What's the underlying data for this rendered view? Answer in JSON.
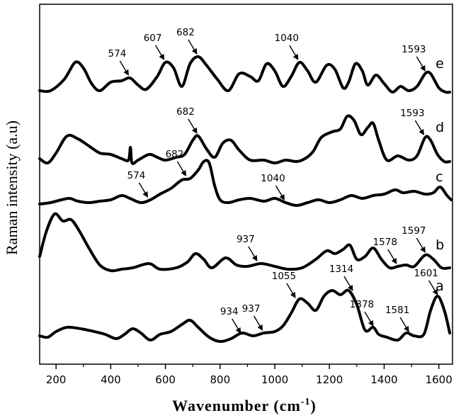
{
  "chart_data": {
    "type": "line",
    "title": "",
    "xlabel": "Wavenumber (cm",
    "xlabel_superscript": "-1",
    "xlabel_close": ")",
    "ylabel": "Raman intensity (a.u)",
    "xlim": [
      140,
      1650
    ],
    "xticks": [
      200,
      400,
      600,
      800,
      1000,
      1200,
      1400,
      1600
    ],
    "grid": false,
    "series": [
      {
        "name": "a",
        "offset": 0.0,
        "points": [
          [
            140,
            0.04
          ],
          [
            170,
            0.03
          ],
          [
            200,
            0.07
          ],
          [
            240,
            0.1
          ],
          [
            290,
            0.09
          ],
          [
            340,
            0.07
          ],
          [
            380,
            0.05
          ],
          [
            420,
            0.02
          ],
          [
            450,
            0.05
          ],
          [
            480,
            0.09
          ],
          [
            510,
            0.06
          ],
          [
            545,
            0.01
          ],
          [
            580,
            0.05
          ],
          [
            620,
            0.07
          ],
          [
            660,
            0.12
          ],
          [
            690,
            0.15
          ],
          [
            720,
            0.1
          ],
          [
            760,
            0.03
          ],
          [
            800,
            0.0
          ],
          [
            840,
            0.02
          ],
          [
            880,
            0.06
          ],
          [
            920,
            0.04
          ],
          [
            960,
            0.06
          ],
          [
            1000,
            0.07
          ],
          [
            1030,
            0.11
          ],
          [
            1060,
            0.2
          ],
          [
            1090,
            0.3
          ],
          [
            1120,
            0.27
          ],
          [
            1150,
            0.22
          ],
          [
            1180,
            0.32
          ],
          [
            1210,
            0.36
          ],
          [
            1240,
            0.33
          ],
          [
            1270,
            0.36
          ],
          [
            1300,
            0.26
          ],
          [
            1330,
            0.08
          ],
          [
            1360,
            0.1
          ],
          [
            1380,
            0.05
          ],
          [
            1410,
            0.03
          ],
          [
            1450,
            0.01
          ],
          [
            1480,
            0.06
          ],
          [
            1510,
            0.04
          ],
          [
            1545,
            0.05
          ],
          [
            1570,
            0.22
          ],
          [
            1595,
            0.32
          ],
          [
            1620,
            0.22
          ],
          [
            1640,
            0.06
          ]
        ]
      },
      {
        "name": "b",
        "offset": 0.5,
        "points": [
          [
            140,
            0.1
          ],
          [
            165,
            0.28
          ],
          [
            195,
            0.4
          ],
          [
            225,
            0.35
          ],
          [
            255,
            0.36
          ],
          [
            285,
            0.28
          ],
          [
            320,
            0.16
          ],
          [
            360,
            0.04
          ],
          [
            400,
            0.0
          ],
          [
            440,
            0.01
          ],
          [
            480,
            0.02
          ],
          [
            540,
            0.05
          ],
          [
            580,
            0.01
          ],
          [
            640,
            0.02
          ],
          [
            680,
            0.06
          ],
          [
            710,
            0.12
          ],
          [
            740,
            0.08
          ],
          [
            770,
            0.02
          ],
          [
            820,
            0.09
          ],
          [
            860,
            0.04
          ],
          [
            900,
            0.03
          ],
          [
            950,
            0.05
          ],
          [
            1000,
            0.03
          ],
          [
            1050,
            0.01
          ],
          [
            1100,
            0.02
          ],
          [
            1150,
            0.08
          ],
          [
            1190,
            0.14
          ],
          [
            1220,
            0.12
          ],
          [
            1250,
            0.15
          ],
          [
            1275,
            0.18
          ],
          [
            1300,
            0.08
          ],
          [
            1330,
            0.1
          ],
          [
            1360,
            0.16
          ],
          [
            1390,
            0.08
          ],
          [
            1420,
            0.02
          ],
          [
            1450,
            0.03
          ],
          [
            1480,
            0.04
          ],
          [
            1510,
            0.03
          ],
          [
            1550,
            0.11
          ],
          [
            1580,
            0.08
          ],
          [
            1610,
            0.02
          ],
          [
            1640,
            0.02
          ]
        ]
      },
      {
        "name": "c",
        "offset": 0.96,
        "points": [
          [
            140,
            0.01
          ],
          [
            180,
            0.02
          ],
          [
            220,
            0.04
          ],
          [
            250,
            0.05
          ],
          [
            280,
            0.03
          ],
          [
            320,
            0.02
          ],
          [
            360,
            0.03
          ],
          [
            400,
            0.04
          ],
          [
            440,
            0.07
          ],
          [
            470,
            0.05
          ],
          [
            510,
            0.02
          ],
          [
            545,
            0.04
          ],
          [
            580,
            0.08
          ],
          [
            620,
            0.12
          ],
          [
            660,
            0.18
          ],
          [
            690,
            0.19
          ],
          [
            720,
            0.25
          ],
          [
            740,
            0.31
          ],
          [
            760,
            0.3
          ],
          [
            780,
            0.14
          ],
          [
            800,
            0.04
          ],
          [
            830,
            0.02
          ],
          [
            870,
            0.04
          ],
          [
            910,
            0.05
          ],
          [
            960,
            0.03
          ],
          [
            1000,
            0.05
          ],
          [
            1040,
            0.02
          ],
          [
            1080,
            0.0
          ],
          [
            1120,
            0.02
          ],
          [
            1160,
            0.04
          ],
          [
            1200,
            0.02
          ],
          [
            1240,
            0.04
          ],
          [
            1280,
            0.07
          ],
          [
            1320,
            0.05
          ],
          [
            1360,
            0.07
          ],
          [
            1400,
            0.08
          ],
          [
            1440,
            0.11
          ],
          [
            1470,
            0.09
          ],
          [
            1510,
            0.1
          ],
          [
            1550,
            0.08
          ],
          [
            1580,
            0.09
          ],
          [
            1605,
            0.13
          ],
          [
            1630,
            0.07
          ],
          [
            1645,
            0.04
          ]
        ]
      },
      {
        "name": "d",
        "offset": 1.26,
        "points": [
          [
            140,
            0.03
          ],
          [
            170,
            0.0
          ],
          [
            200,
            0.07
          ],
          [
            240,
            0.19
          ],
          [
            280,
            0.17
          ],
          [
            320,
            0.12
          ],
          [
            360,
            0.07
          ],
          [
            400,
            0.06
          ],
          [
            440,
            0.03
          ],
          [
            465,
            0.02
          ],
          [
            472,
            0.11
          ],
          [
            478,
            0.0
          ],
          [
            500,
            0.02
          ],
          [
            540,
            0.06
          ],
          [
            570,
            0.04
          ],
          [
            600,
            0.02
          ],
          [
            640,
            0.04
          ],
          [
            670,
            0.06
          ],
          [
            700,
            0.16
          ],
          [
            720,
            0.19
          ],
          [
            750,
            0.1
          ],
          [
            780,
            0.04
          ],
          [
            810,
            0.14
          ],
          [
            840,
            0.16
          ],
          [
            870,
            0.09
          ],
          [
            910,
            0.02
          ],
          [
            960,
            0.02
          ],
          [
            1000,
            0.0
          ],
          [
            1040,
            0.02
          ],
          [
            1080,
            0.01
          ],
          [
            1110,
            0.03
          ],
          [
            1140,
            0.08
          ],
          [
            1170,
            0.18
          ],
          [
            1210,
            0.22
          ],
          [
            1240,
            0.24
          ],
          [
            1265,
            0.33
          ],
          [
            1290,
            0.3
          ],
          [
            1315,
            0.2
          ],
          [
            1340,
            0.25
          ],
          [
            1360,
            0.28
          ],
          [
            1380,
            0.16
          ],
          [
            1410,
            0.02
          ],
          [
            1450,
            0.05
          ],
          [
            1490,
            0.02
          ],
          [
            1520,
            0.05
          ],
          [
            1550,
            0.18
          ],
          [
            1570,
            0.16
          ],
          [
            1595,
            0.06
          ],
          [
            1620,
            0.01
          ],
          [
            1640,
            0.01
          ]
        ]
      },
      {
        "name": "e",
        "offset": 1.75,
        "points": [
          [
            140,
            0.02
          ],
          [
            180,
            0.02
          ],
          [
            230,
            0.1
          ],
          [
            270,
            0.22
          ],
          [
            300,
            0.18
          ],
          [
            330,
            0.07
          ],
          [
            360,
            0.02
          ],
          [
            400,
            0.08
          ],
          [
            440,
            0.09
          ],
          [
            470,
            0.11
          ],
          [
            500,
            0.06
          ],
          [
            530,
            0.03
          ],
          [
            570,
            0.12
          ],
          [
            600,
            0.22
          ],
          [
            630,
            0.18
          ],
          [
            660,
            0.05
          ],
          [
            690,
            0.21
          ],
          [
            720,
            0.26
          ],
          [
            750,
            0.2
          ],
          [
            790,
            0.1
          ],
          [
            830,
            0.02
          ],
          [
            870,
            0.14
          ],
          [
            910,
            0.12
          ],
          [
            940,
            0.09
          ],
          [
            970,
            0.21
          ],
          [
            1000,
            0.16
          ],
          [
            1030,
            0.05
          ],
          [
            1060,
            0.12
          ],
          [
            1090,
            0.22
          ],
          [
            1120,
            0.16
          ],
          [
            1150,
            0.08
          ],
          [
            1190,
            0.2
          ],
          [
            1220,
            0.17
          ],
          [
            1250,
            0.04
          ],
          [
            1270,
            0.08
          ],
          [
            1295,
            0.21
          ],
          [
            1320,
            0.16
          ],
          [
            1340,
            0.06
          ],
          [
            1370,
            0.13
          ],
          [
            1400,
            0.07
          ],
          [
            1430,
            0.01
          ],
          [
            1460,
            0.05
          ],
          [
            1490,
            0.02
          ],
          [
            1520,
            0.05
          ],
          [
            1550,
            0.14
          ],
          [
            1570,
            0.14
          ],
          [
            1600,
            0.04
          ],
          [
            1625,
            0.01
          ],
          [
            1640,
            0.01
          ]
        ]
      }
    ],
    "annotations": [
      {
        "series": "a",
        "text": "934",
        "x": 880,
        "y": 0.04
      },
      {
        "series": "a",
        "text": "937",
        "x": 960,
        "y": 0.06
      },
      {
        "series": "a",
        "text": "1055",
        "x": 1080,
        "y": 0.29
      },
      {
        "series": "a",
        "text": "1314",
        "x": 1290,
        "y": 0.34
      },
      {
        "series": "a",
        "text": "1378",
        "x": 1365,
        "y": 0.09
      },
      {
        "series": "a",
        "text": "1581",
        "x": 1495,
        "y": 0.05
      },
      {
        "series": "a",
        "text": "1601",
        "x": 1600,
        "y": 0.31
      },
      {
        "series": "b",
        "text": "937",
        "x": 940,
        "y": 0.05
      },
      {
        "series": "b",
        "text": "1578",
        "x": 1450,
        "y": 0.03
      },
      {
        "series": "b",
        "text": "1597",
        "x": 1555,
        "y": 0.11
      },
      {
        "series": "c",
        "text": "574",
        "x": 540,
        "y": 0.04
      },
      {
        "series": "c",
        "text": "682",
        "x": 680,
        "y": 0.19
      },
      {
        "series": "c",
        "text": "1040",
        "x": 1040,
        "y": 0.02
      },
      {
        "series": "d",
        "text": "682",
        "x": 720,
        "y": 0.19
      },
      {
        "series": "d",
        "text": "1593",
        "x": 1550,
        "y": 0.18
      },
      {
        "series": "e",
        "text": "574",
        "x": 470,
        "y": 0.11
      },
      {
        "series": "e",
        "text": "607",
        "x": 600,
        "y": 0.22
      },
      {
        "series": "e",
        "text": "682",
        "x": 720,
        "y": 0.26
      },
      {
        "series": "e",
        "text": "1040",
        "x": 1090,
        "y": 0.22
      },
      {
        "series": "e",
        "text": "1593",
        "x": 1555,
        "y": 0.14
      }
    ]
  }
}
